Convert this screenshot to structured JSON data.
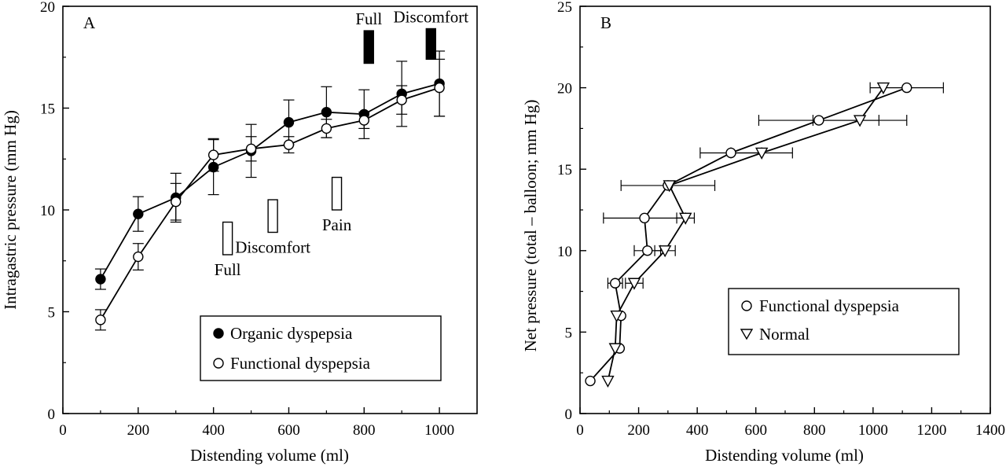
{
  "chart_data": [
    {
      "type": "line",
      "panel_label": "A",
      "xlabel": "Distending volume (ml)",
      "ylabel": "Intragastric pressure (mm Hg)",
      "xlim": [
        0,
        1100
      ],
      "ylim": [
        0,
        20
      ],
      "xticks": [
        "0",
        "200",
        "400",
        "600",
        "800",
        "1000"
      ],
      "yticks": [
        "0",
        "5",
        "10",
        "15",
        "20"
      ],
      "grid": false,
      "legend_position": "bottom-right",
      "series": [
        {
          "name": "Organic dyspepsia",
          "marker": "filled-circle",
          "points": [
            {
              "x": 100,
              "y": 6.6,
              "err": 0.5
            },
            {
              "x": 200,
              "y": 9.8,
              "err": 0.85
            },
            {
              "x": 300,
              "y": 10.6,
              "err": 1.2
            },
            {
              "x": 400,
              "y": 12.1,
              "err": 1.35
            },
            {
              "x": 500,
              "y": 12.9,
              "err": 1.3
            },
            {
              "x": 600,
              "y": 14.3,
              "err": 1.1
            },
            {
              "x": 700,
              "y": 14.8,
              "err": 1.25
            },
            {
              "x": 800,
              "y": 14.7,
              "err": 1.2
            },
            {
              "x": 900,
              "y": 15.7,
              "err": 1.6
            },
            {
              "x": 1000,
              "y": 16.2,
              "err": 1.6
            }
          ]
        },
        {
          "name": "Functional dyspepsia",
          "marker": "open-circle",
          "points": [
            {
              "x": 100,
              "y": 4.6,
              "err": 0.5
            },
            {
              "x": 200,
              "y": 7.7,
              "err": 0.65
            },
            {
              "x": 300,
              "y": 10.4,
              "err": 0.9
            },
            {
              "x": 400,
              "y": 12.7,
              "err": 0.8
            },
            {
              "x": 500,
              "y": 13.0,
              "err": 0.6
            },
            {
              "x": 600,
              "y": 13.2,
              "err": 0.4
            },
            {
              "x": 700,
              "y": 14.0,
              "err": 0.45
            },
            {
              "x": 800,
              "y": 14.4,
              "err": 0.4
            },
            {
              "x": 900,
              "y": 15.4,
              "err": 0.7
            },
            {
              "x": 1000,
              "y": 16.0,
              "err": 1.4
            }
          ]
        }
      ],
      "annotations": [
        {
          "label": "Full",
          "style": "filled-bar",
          "x_range": [
            800,
            825
          ],
          "y_range": [
            17.2,
            18.8
          ]
        },
        {
          "label": "Discomfort",
          "style": "filled-bar",
          "x_range": [
            965,
            990
          ],
          "y_range": [
            17.4,
            18.9
          ]
        },
        {
          "label": "Full",
          "style": "open-bar",
          "x_range": [
            425,
            450
          ],
          "y_range": [
            7.8,
            9.4
          ]
        },
        {
          "label": "Discomfort",
          "style": "open-bar",
          "x_range": [
            545,
            570
          ],
          "y_range": [
            8.9,
            10.5
          ]
        },
        {
          "label": "Pain",
          "style": "open-bar",
          "x_range": [
            715,
            740
          ],
          "y_range": [
            10.0,
            11.6
          ]
        }
      ]
    },
    {
      "type": "line",
      "panel_label": "B",
      "xlabel": "Distending volume (ml)",
      "ylabel": "Net pressure (total – balloon; mm Hg)",
      "xlim": [
        0,
        1400
      ],
      "ylim": [
        0,
        25
      ],
      "xticks": [
        "0",
        "200",
        "400",
        "600",
        "800",
        "1000",
        "1200",
        "1400"
      ],
      "yticks": [
        "0",
        "5",
        "10",
        "15",
        "20",
        "25"
      ],
      "grid": false,
      "legend_position": "middle-right",
      "series": [
        {
          "name": "Functional dyspepsia",
          "marker": "open-circle",
          "points": [
            {
              "x": 35,
              "y": 2,
              "xerr": 0
            },
            {
              "x": 135,
              "y": 4,
              "xerr": 0
            },
            {
              "x": 140,
              "y": 6,
              "xerr": 0
            },
            {
              "x": 120,
              "y": 8,
              "xerr": 25
            },
            {
              "x": 230,
              "y": 10,
              "xerr": 45
            },
            {
              "x": 220,
              "y": 12,
              "xerr": 140
            },
            {
              "x": 300,
              "y": 14,
              "xerr": 160
            },
            {
              "x": 515,
              "y": 16,
              "xerr": 105
            },
            {
              "x": 815,
              "y": 18,
              "xerr": 205
            },
            {
              "x": 1115,
              "y": 20,
              "xerr": 125
            }
          ]
        },
        {
          "name": "Normal",
          "marker": "open-triangle-down",
          "points": [
            {
              "x": 95,
              "y": 2,
              "xerr": 0
            },
            {
              "x": 120,
              "y": 4,
              "xerr": 0
            },
            {
              "x": 125,
              "y": 6,
              "xerr": 0
            },
            {
              "x": 185,
              "y": 8,
              "xerr": 30
            },
            {
              "x": 290,
              "y": 10,
              "xerr": 35
            },
            {
              "x": 360,
              "y": 12,
              "xerr": 30
            },
            {
              "x": 305,
              "y": 14,
              "xerr": 0
            },
            {
              "x": 620,
              "y": 16,
              "xerr": 105
            },
            {
              "x": 955,
              "y": 18,
              "xerr": 160
            },
            {
              "x": 1035,
              "y": 20,
              "xerr": 0
            }
          ]
        }
      ]
    }
  ]
}
